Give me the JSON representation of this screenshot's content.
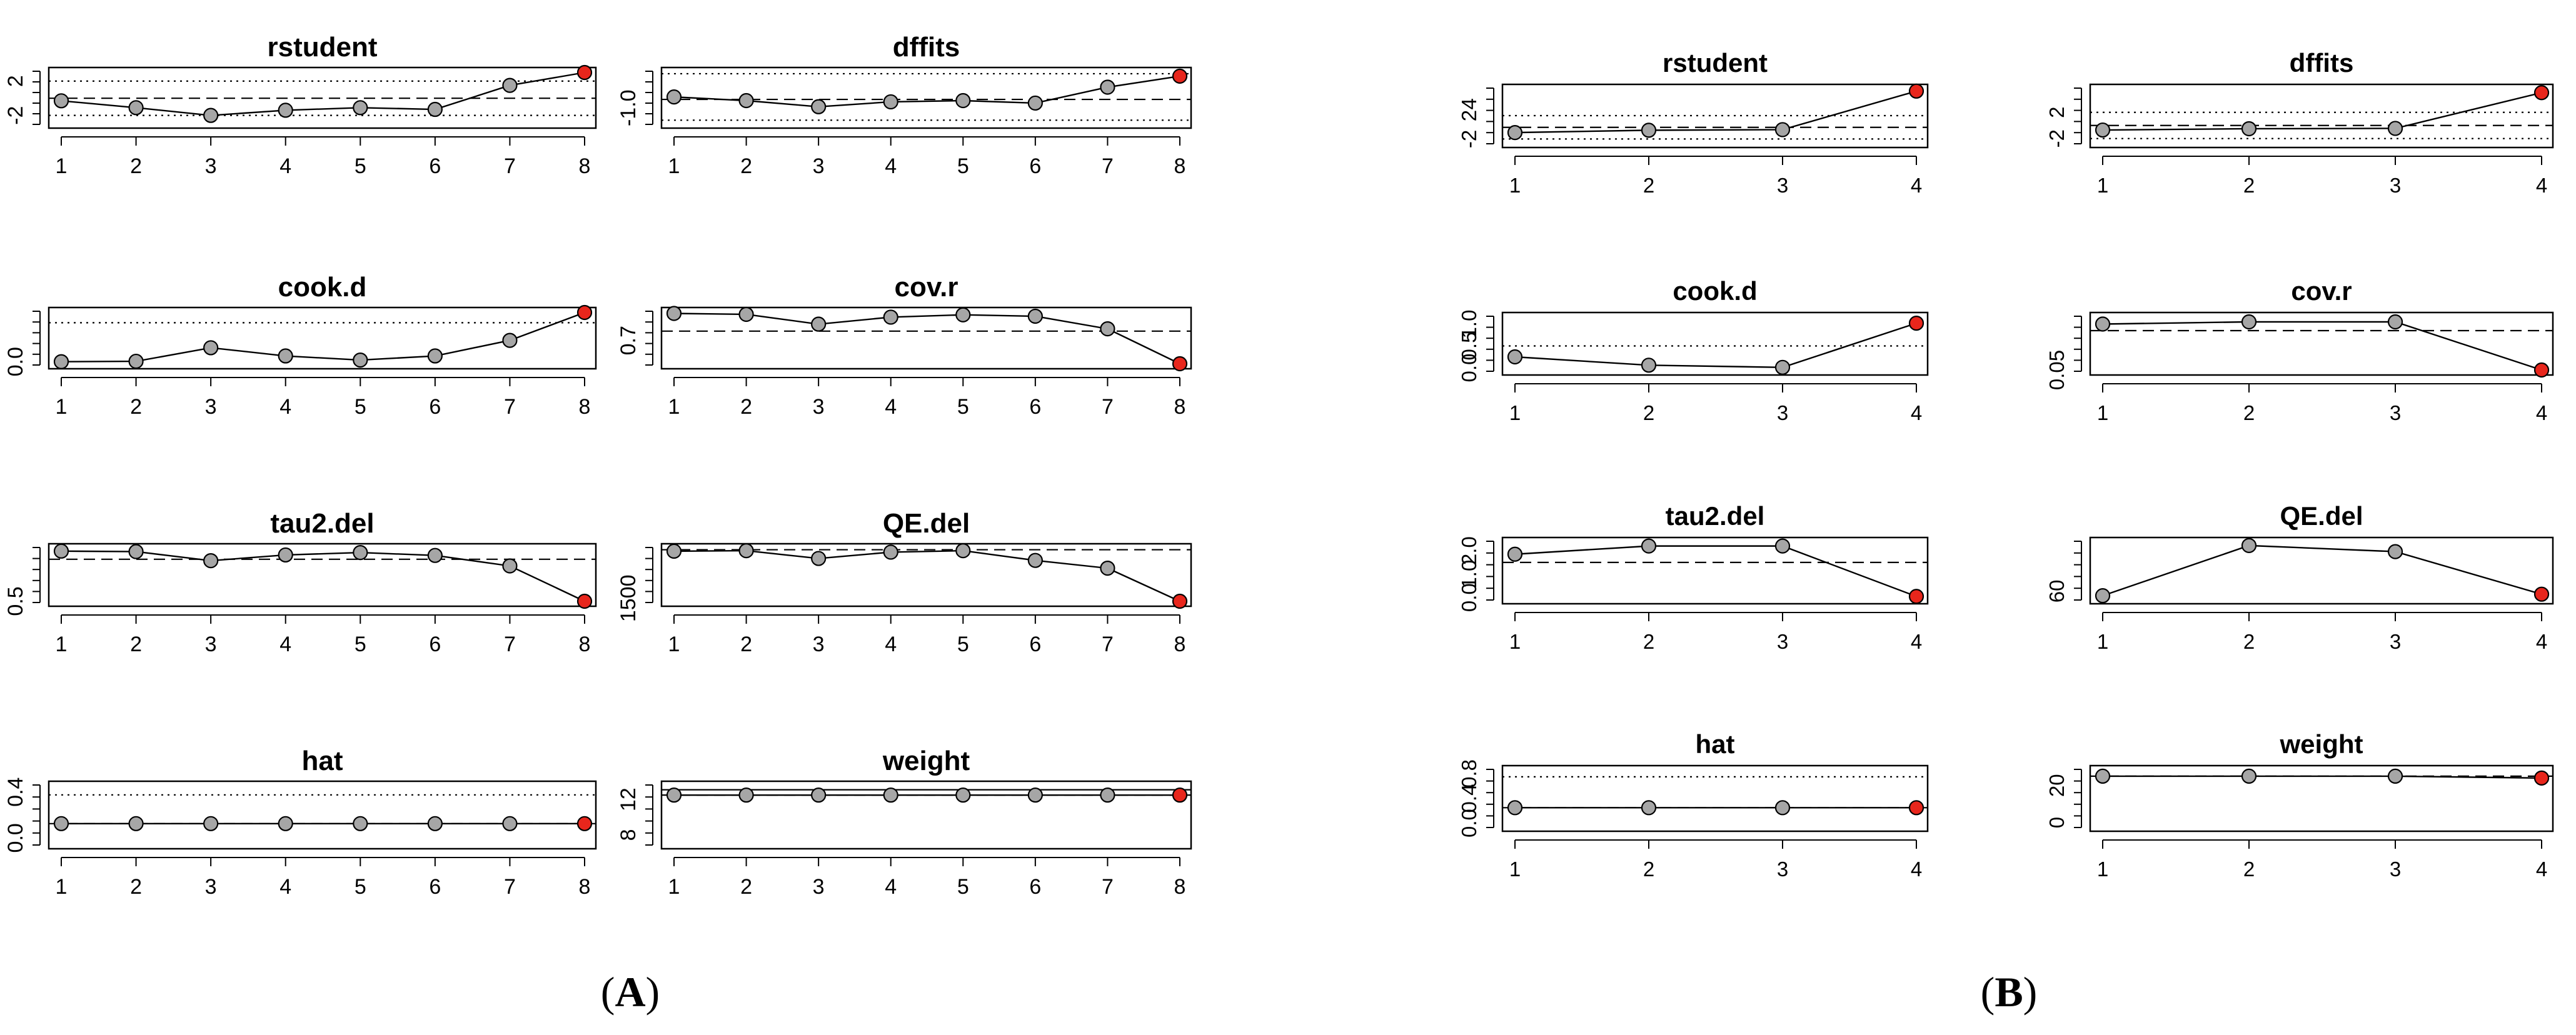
{
  "figure_labels": {
    "A": "A",
    "B": "B"
  },
  "colors": {
    "point": "#a6a6a6",
    "highlight": "#e8261c",
    "line": "#000000"
  },
  "chart_data": [
    {
      "panel": "A",
      "title": "rstudent",
      "type": "line",
      "x": [
        1,
        2,
        3,
        4,
        5,
        6,
        7,
        8
      ],
      "values": [
        -0.3,
        -1.1,
        -2.0,
        -1.4,
        -1.1,
        -1.3,
        1.5,
        3.0
      ],
      "highlight": [
        8
      ],
      "ylim": [
        -2.9,
        3.0
      ],
      "yticks": [
        -2,
        2
      ],
      "ytick_labels": [
        "-2",
        "2"
      ],
      "hlines": [
        {
          "y": -2.0,
          "style": "dotted"
        },
        {
          "y": 0,
          "style": "dashed"
        },
        {
          "y": 2.0,
          "style": "dotted"
        }
      ]
    },
    {
      "panel": "A",
      "title": "dffits",
      "type": "line",
      "x": [
        1,
        2,
        3,
        4,
        5,
        6,
        7,
        8
      ],
      "values": [
        -0.55,
        -0.7,
        -0.95,
        -0.75,
        -0.7,
        -0.8,
        -0.15,
        0.3
      ],
      "highlight": [
        8
      ],
      "ylim": [
        -1.62,
        0.45
      ],
      "yticks": [
        -1.0
      ],
      "ytick_labels": [
        "-1.0"
      ],
      "hlines": [
        {
          "y": -1.5,
          "style": "dotted"
        },
        {
          "y": -0.65,
          "style": "dashed"
        },
        {
          "y": 0.4,
          "style": "dotted"
        }
      ]
    },
    {
      "panel": "A",
      "title": "cook.d",
      "type": "line",
      "x": [
        1,
        2,
        3,
        4,
        5,
        6,
        7,
        8
      ],
      "values": [
        0.0,
        0.01,
        0.34,
        0.14,
        0.04,
        0.14,
        0.52,
        1.2
      ],
      "highlight": [
        8
      ],
      "ylim": [
        -0.05,
        1.2
      ],
      "yticks": [
        0.0
      ],
      "ytick_labels": [
        "0.0"
      ],
      "hlines": [
        {
          "y": 0.95,
          "style": "dotted"
        }
      ]
    },
    {
      "panel": "A",
      "title": "cov.r",
      "type": "line",
      "x": [
        1,
        2,
        3,
        4,
        5,
        6,
        7,
        8
      ],
      "values": [
        1.28,
        1.26,
        1.05,
        1.2,
        1.25,
        1.22,
        0.95,
        0.2
      ],
      "highlight": [
        8
      ],
      "ylim": [
        0.2,
        1.3
      ],
      "yticks": [
        0.7
      ],
      "ytick_labels": [
        "0.7"
      ],
      "hlines": [
        {
          "y": 0.9,
          "style": "dashed"
        }
      ]
    },
    {
      "panel": "A",
      "title": "tau2.del",
      "type": "line",
      "x": [
        1,
        2,
        3,
        4,
        5,
        6,
        7,
        8
      ],
      "values": [
        1.55,
        1.54,
        1.35,
        1.47,
        1.52,
        1.46,
        1.24,
        0.5
      ],
      "highlight": [
        8
      ],
      "ylim": [
        0.5,
        1.6
      ],
      "yticks": [
        0.5
      ],
      "ytick_labels": [
        "0.5"
      ],
      "hlines": [
        {
          "y": 1.38,
          "style": "dashed"
        }
      ]
    },
    {
      "panel": "A",
      "title": "QE.del",
      "type": "line",
      "x": [
        1,
        2,
        3,
        4,
        5,
        6,
        7,
        8
      ],
      "values": [
        1985,
        1990,
        1910,
        1975,
        1990,
        1890,
        1810,
        1470
      ],
      "highlight": [
        8
      ],
      "ylim": [
        1470,
        2010
      ],
      "yticks": [
        1500
      ],
      "ytick_labels": [
        "1500"
      ],
      "hlines": [
        {
          "y": 2000,
          "style": "dashed"
        }
      ]
    },
    {
      "panel": "A",
      "title": "hat",
      "type": "line",
      "x": [
        1,
        2,
        3,
        4,
        5,
        6,
        7,
        8
      ],
      "values": [
        0.125,
        0.125,
        0.125,
        0.125,
        0.125,
        0.125,
        0.125,
        0.125
      ],
      "highlight": [
        8
      ],
      "ylim": [
        -0.05,
        0.45
      ],
      "yticks": [
        0.0,
        0.4
      ],
      "ytick_labels": [
        "0.0",
        "0.4"
      ],
      "hlines": [
        {
          "y": 0.125,
          "style": "dashed"
        },
        {
          "y": 0.375,
          "style": "dotted"
        }
      ]
    },
    {
      "panel": "A",
      "title": "weight",
      "type": "line",
      "x": [
        1,
        2,
        3,
        4,
        5,
        6,
        7,
        8
      ],
      "values": [
        12.5,
        12.5,
        12.5,
        12.5,
        12.5,
        12.5,
        12.5,
        12.5
      ],
      "highlight": [
        8
      ],
      "ylim": [
        7,
        13.5
      ],
      "yticks": [
        8,
        12
      ],
      "ytick_labels": [
        "8",
        "12"
      ],
      "hlines": [
        {
          "y": 12.5,
          "style": "dashed"
        },
        {
          "y": 13.1,
          "style": "solid"
        }
      ]
    },
    {
      "panel": "B",
      "title": "rstudent",
      "type": "line",
      "x": [
        1,
        2,
        3,
        4
      ],
      "values": [
        -0.9,
        -0.5,
        -0.4,
        6.2
      ],
      "highlight": [
        4
      ],
      "ylim": [
        -2.6,
        6.5
      ],
      "yticks": [
        -2,
        2,
        4
      ],
      "ytick_labels": [
        "-2",
        "2",
        "4"
      ],
      "hlines": [
        {
          "y": -2.0,
          "style": "dotted"
        },
        {
          "y": 0,
          "style": "dashed"
        },
        {
          "y": 2.0,
          "style": "dotted"
        }
      ]
    },
    {
      "panel": "B",
      "title": "dffits",
      "type": "line",
      "x": [
        1,
        2,
        3,
        4
      ],
      "values": [
        -0.7,
        -0.5,
        -0.45,
        5.0
      ],
      "highlight": [
        4
      ],
      "ylim": [
        -2.6,
        5.5
      ],
      "yticks": [
        -2,
        2
      ],
      "ytick_labels": [
        "-2",
        "2"
      ],
      "hlines": [
        {
          "y": -2.0,
          "style": "dotted"
        },
        {
          "y": 0,
          "style": "dashed"
        },
        {
          "y": 2.0,
          "style": "dotted"
        }
      ]
    },
    {
      "panel": "B",
      "title": "cook.d",
      "type": "line",
      "x": [
        1,
        2,
        3,
        4
      ],
      "values": [
        0.25,
        0.06,
        0.01,
        1.02
      ],
      "highlight": [
        4
      ],
      "ylim": [
        -0.05,
        1.15
      ],
      "yticks": [
        0.0,
        0.5,
        1.0
      ],
      "ytick_labels": [
        "0.0",
        "0.5",
        "1.0"
      ],
      "hlines": [
        {
          "y": 0.5,
          "style": "dotted"
        }
      ]
    },
    {
      "panel": "B",
      "title": "cov.r",
      "type": "line",
      "x": [
        1,
        2,
        3,
        4
      ],
      "values": [
        1.1,
        1.15,
        1.15,
        0.05
      ],
      "highlight": [
        4
      ],
      "ylim": [
        0.05,
        1.25
      ],
      "yticks": [
        0.05
      ],
      "ytick_labels": [
        "0.05"
      ],
      "hlines": [
        {
          "y": 0.95,
          "style": "dashed"
        }
      ]
    },
    {
      "panel": "B",
      "title": "tau2.del",
      "type": "line",
      "x": [
        1,
        2,
        3,
        4
      ],
      "values": [
        1.85,
        2.2,
        2.2,
        0.05
      ],
      "highlight": [
        4
      ],
      "ylim": [
        -0.05,
        2.35
      ],
      "yticks": [
        0.0,
        1.0,
        2.0
      ],
      "ytick_labels": [
        "0.0",
        "1.0",
        "2.0"
      ],
      "hlines": [
        {
          "y": 1.5,
          "style": "dashed"
        }
      ]
    },
    {
      "panel": "B",
      "title": "QE.del",
      "type": "line",
      "x": [
        1,
        2,
        3,
        4
      ],
      "values": [
        57,
        90,
        86,
        58
      ],
      "highlight": [
        4
      ],
      "ylim": [
        55,
        92
      ],
      "yticks": [
        60
      ],
      "ytick_labels": [
        "60"
      ],
      "hlines": []
    },
    {
      "panel": "B",
      "title": "hat",
      "type": "line",
      "x": [
        1,
        2,
        3,
        4
      ],
      "values": [
        0.25,
        0.25,
        0.25,
        0.25
      ],
      "highlight": [
        4
      ],
      "ylim": [
        -0.05,
        0.85
      ],
      "yticks": [
        0.0,
        0.4,
        0.8
      ],
      "ytick_labels": [
        "0.0",
        "0.4",
        "0.8"
      ],
      "hlines": [
        {
          "y": 0.25,
          "style": "dashed"
        },
        {
          "y": 0.75,
          "style": "dotted"
        }
      ]
    },
    {
      "panel": "B",
      "title": "weight",
      "type": "line",
      "x": [
        1,
        2,
        3,
        4
      ],
      "values": [
        25,
        25,
        25,
        24
      ],
      "highlight": [
        4
      ],
      "ylim": [
        -2,
        28
      ],
      "yticks": [
        0,
        20
      ],
      "ytick_labels": [
        "0",
        "20"
      ],
      "hlines": [
        {
          "y": 25,
          "style": "dashed"
        }
      ]
    }
  ]
}
